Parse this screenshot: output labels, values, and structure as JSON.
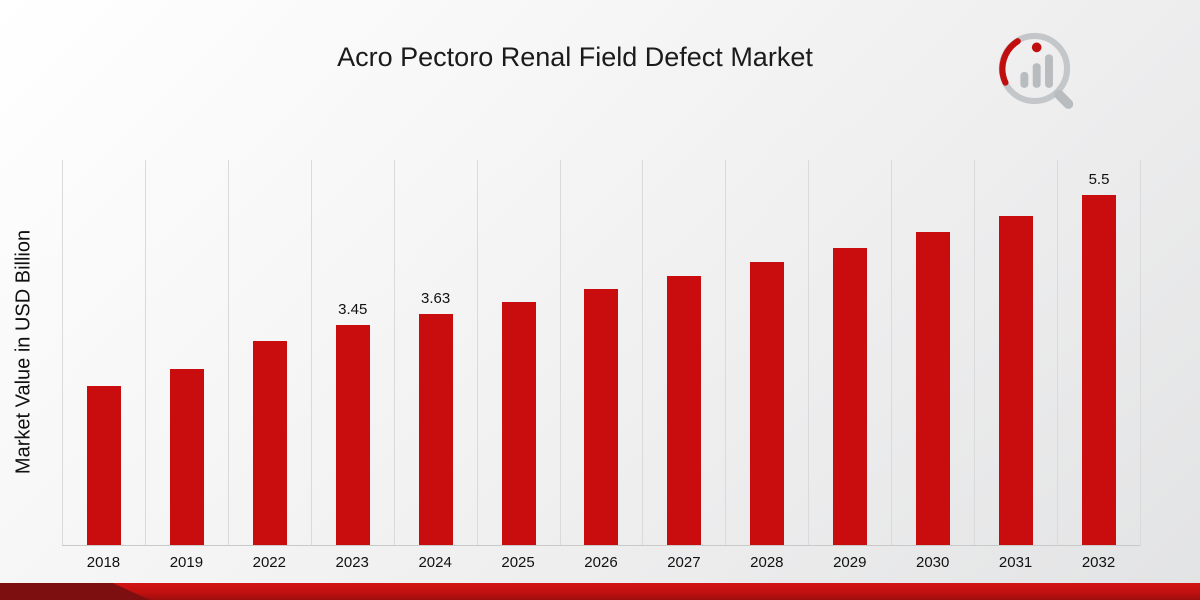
{
  "page": {
    "title": "Acro Pectoro Renal Field Defect Market"
  },
  "chart_data": {
    "type": "bar",
    "title": "Acro Pectoro Renal Field Defect Market",
    "xlabel": "",
    "ylabel": "Market Value in USD Billion",
    "categories": [
      "2018",
      "2019",
      "2022",
      "2023",
      "2024",
      "2025",
      "2026",
      "2027",
      "2028",
      "2029",
      "2030",
      "2031",
      "2032"
    ],
    "values": [
      2.5,
      2.77,
      3.2,
      3.45,
      3.63,
      3.82,
      4.02,
      4.22,
      4.44,
      4.67,
      4.92,
      5.17,
      5.5
    ],
    "data_labels": [
      "",
      "",
      "",
      "3.45",
      "3.63",
      "",
      "",
      "",
      "",
      "",
      "",
      "",
      "5.5"
    ],
    "ylim": [
      0,
      6.05
    ],
    "grid": "vertical-only",
    "legend": "none",
    "bar_color": "#c90d0e"
  },
  "branding": {
    "logo_name": "market-research-circle-logo",
    "accent_color": "#c90d0e",
    "logo_gray": "#bdc0c2"
  },
  "footer": {
    "band_color": "#c11010",
    "band_dark_color": "#7d0f10"
  }
}
